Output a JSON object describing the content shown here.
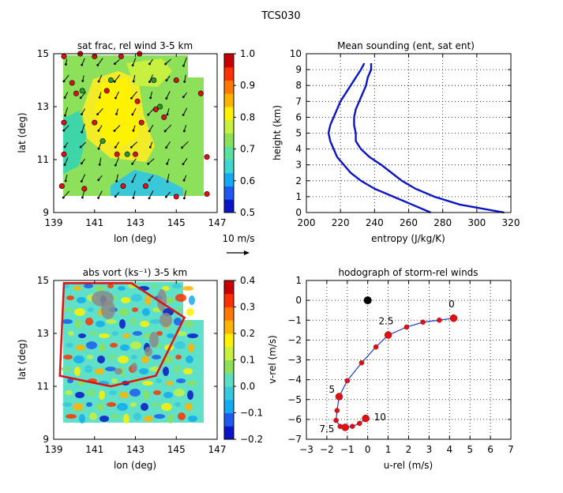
{
  "figure": {
    "title": "TCS030"
  },
  "chart_data": [
    {
      "type": "heatmap",
      "panel": "top-left",
      "title": "sat frac, rel wind 3-5 km",
      "xlabel": "lon (deg)",
      "ylabel": "lat (deg)",
      "xlim": [
        139,
        147
      ],
      "ylim": [
        9,
        15
      ],
      "xticks": [
        "139",
        "141",
        "143",
        "145",
        "147"
      ],
      "yticks": [
        "9",
        "11",
        "13",
        "15"
      ],
      "colorbar": {
        "ticks": [
          "0.5",
          "0.6",
          "0.7",
          "0.8",
          "0.9",
          "1.0"
        ],
        "range": [
          0.5,
          1.0
        ]
      },
      "wind_scale_label": "10 m/s",
      "red_dots": [
        [
          139.5,
          14.9
        ],
        [
          140.3,
          15.0
        ],
        [
          141.0,
          14.9
        ],
        [
          142.3,
          14.9
        ],
        [
          143.2,
          15.0
        ],
        [
          139.9,
          13.9
        ],
        [
          145.0,
          14.0
        ],
        [
          146.2,
          13.5
        ],
        [
          140.1,
          13.5
        ],
        [
          141.6,
          13.6
        ],
        [
          143.1,
          13.2
        ],
        [
          144.0,
          12.9
        ],
        [
          143.3,
          12.4
        ],
        [
          144.4,
          12.6
        ],
        [
          139.5,
          12.4
        ],
        [
          141.0,
          12.4
        ],
        [
          139.5,
          11.2
        ],
        [
          142.1,
          11.2
        ],
        [
          143.0,
          11.2
        ],
        [
          146.5,
          11.1
        ],
        [
          139.4,
          10.0
        ],
        [
          140.5,
          9.9
        ],
        [
          142.4,
          10.0
        ],
        [
          143.5,
          10.0
        ],
        [
          145.0,
          9.6
        ],
        [
          146.5,
          9.7
        ]
      ],
      "green_dots": [
        [
          140.4,
          13.6
        ],
        [
          141.8,
          14.0
        ],
        [
          143.9,
          14.0
        ],
        [
          144.2,
          13.0
        ],
        [
          141.4,
          11.7
        ],
        [
          142.6,
          11.2
        ]
      ]
    },
    {
      "type": "line",
      "panel": "top-right",
      "title": "Mean sounding (ent, sat ent)",
      "xlabel": "entropy (J/kg/K)",
      "ylabel": "height (km)",
      "xlim": [
        200,
        320
      ],
      "ylim": [
        0,
        10
      ],
      "xticks": [
        "200",
        "220",
        "240",
        "260",
        "280",
        "300",
        "320"
      ],
      "yticks": [
        "0",
        "1",
        "2",
        "3",
        "4",
        "5",
        "6",
        "7",
        "8",
        "9",
        "10"
      ],
      "grid": true,
      "series": [
        {
          "y": [
            0,
            0.5,
            1,
            1.5,
            2,
            2.5,
            3,
            3.5,
            4,
            4.5,
            5,
            5.5,
            6,
            6.5,
            7,
            7.5,
            8,
            8.5,
            9,
            9.4
          ],
          "x": [
            273,
            262,
            251,
            240,
            232,
            226,
            222,
            218,
            216,
            214,
            213,
            214,
            216,
            218,
            220,
            223,
            226,
            229,
            232,
            234
          ]
        },
        {
          "y": [
            0,
            0.5,
            1,
            1.5,
            2,
            2.5,
            3,
            3.5,
            4,
            4.5,
            5,
            5.5,
            6,
            6.5,
            7,
            7.5,
            8,
            8.5,
            9,
            9.4
          ],
          "x": [
            316,
            290,
            275,
            264,
            256,
            250,
            244,
            237,
            232,
            229,
            229,
            228,
            228,
            229,
            231,
            233,
            235,
            236,
            238,
            238
          ]
        }
      ]
    },
    {
      "type": "heatmap",
      "panel": "bottom-left",
      "title": "abs vort (ks⁻¹) 3-5 km",
      "xlabel": "lon (deg)",
      "ylabel": "lat (deg)",
      "xlim": [
        139,
        147
      ],
      "ylim": [
        9,
        15
      ],
      "xticks": [
        "139",
        "141",
        "143",
        "145",
        "147"
      ],
      "yticks": [
        "9",
        "11",
        "13",
        "15"
      ],
      "colorbar": {
        "ticks": [
          "−0.2",
          "−0.1",
          "0.0",
          "0.1",
          "0.2",
          "0.3",
          "0.4"
        ],
        "range": [
          -0.2,
          0.4
        ]
      },
      "outline": [
        [
          139.5,
          14.9
        ],
        [
          142.8,
          14.9
        ],
        [
          145.4,
          13.6
        ],
        [
          144.0,
          11.4
        ],
        [
          141.8,
          11.0
        ],
        [
          139.3,
          11.4
        ]
      ]
    },
    {
      "type": "line",
      "panel": "bottom-right",
      "title": "hodograph of storm-rel winds",
      "xlabel": "u-rel (m/s)",
      "ylabel": "v-rel (m/s)",
      "xlim": [
        -3,
        7
      ],
      "ylim": [
        -7,
        1
      ],
      "xticks": [
        "−3",
        "−2",
        "−1",
        "0",
        "1",
        "2",
        "3",
        "4",
        "5",
        "6",
        "7"
      ],
      "yticks": [
        "−7",
        "−6",
        "−5",
        "−4",
        "−3",
        "−2",
        "−1",
        "0",
        "1"
      ],
      "grid": true,
      "origin_point": [
        0,
        0
      ],
      "points": [
        [
          4.2,
          -0.9
        ],
        [
          3.5,
          -1.0
        ],
        [
          2.7,
          -1.1
        ],
        [
          1.9,
          -1.35
        ],
        [
          1.0,
          -1.75
        ],
        [
          0.4,
          -2.35
        ],
        [
          -0.3,
          -3.15
        ],
        [
          -1.0,
          -4.05
        ],
        [
          -1.4,
          -4.85
        ],
        [
          -1.5,
          -5.55
        ],
        [
          -1.55,
          -6.05
        ],
        [
          -1.35,
          -6.35
        ],
        [
          -1.1,
          -6.4
        ],
        [
          -0.75,
          -6.35
        ],
        [
          -0.4,
          -6.2
        ],
        [
          -0.1,
          -5.95
        ]
      ],
      "big_point_indices": [
        0,
        4,
        8,
        12,
        15
      ],
      "annotations": [
        {
          "text": "0",
          "x": 4.1,
          "y": -0.35
        },
        {
          "text": "2.5",
          "x": 0.9,
          "y": -1.2
        },
        {
          "text": "5",
          "x": -1.75,
          "y": -4.65
        },
        {
          "text": "7.5",
          "x": -2.0,
          "y": -6.65
        },
        {
          "text": "10",
          "x": 0.6,
          "y": -6.05
        }
      ]
    }
  ]
}
